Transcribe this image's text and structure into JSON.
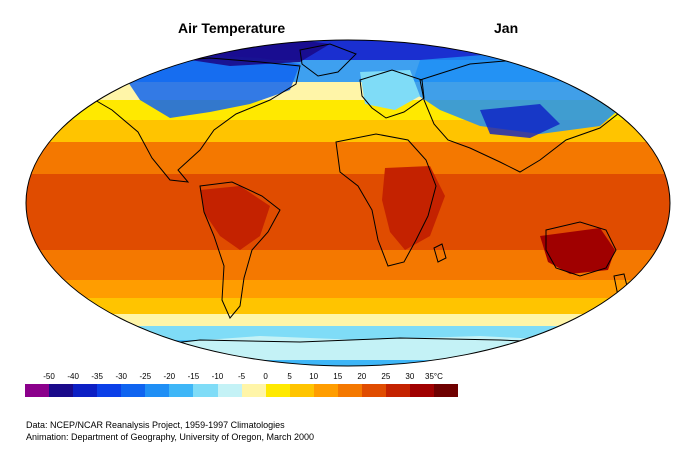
{
  "map": {
    "title": "Air Temperature",
    "month": "Jan"
  },
  "legend": {
    "unit": "°C",
    "ticks": [
      "-50",
      "-40",
      "-35",
      "-30",
      "-25",
      "-20",
      "-15",
      "-10",
      "-5",
      "0",
      "5",
      "10",
      "15",
      "20",
      "25",
      "30",
      "35°C"
    ],
    "colors": [
      "#8b008b",
      "#1a0a8a",
      "#0c1fc4",
      "#0b3fe8",
      "#0f64f0",
      "#1f8ff5",
      "#3eb6f7",
      "#7fdcf7",
      "#c4f2f6",
      "#fff5a8",
      "#ffe900",
      "#ffc400",
      "#ff9d00",
      "#f47800",
      "#e04c00",
      "#c42200",
      "#a00000",
      "#6f0000"
    ]
  },
  "credits": {
    "line1": "Data:  NCEP/NCAR Reanalysis Project, 1959-1997 Climatologies",
    "line2": "Animation:  Department of Geography, University of Oregon, March 2000"
  }
}
